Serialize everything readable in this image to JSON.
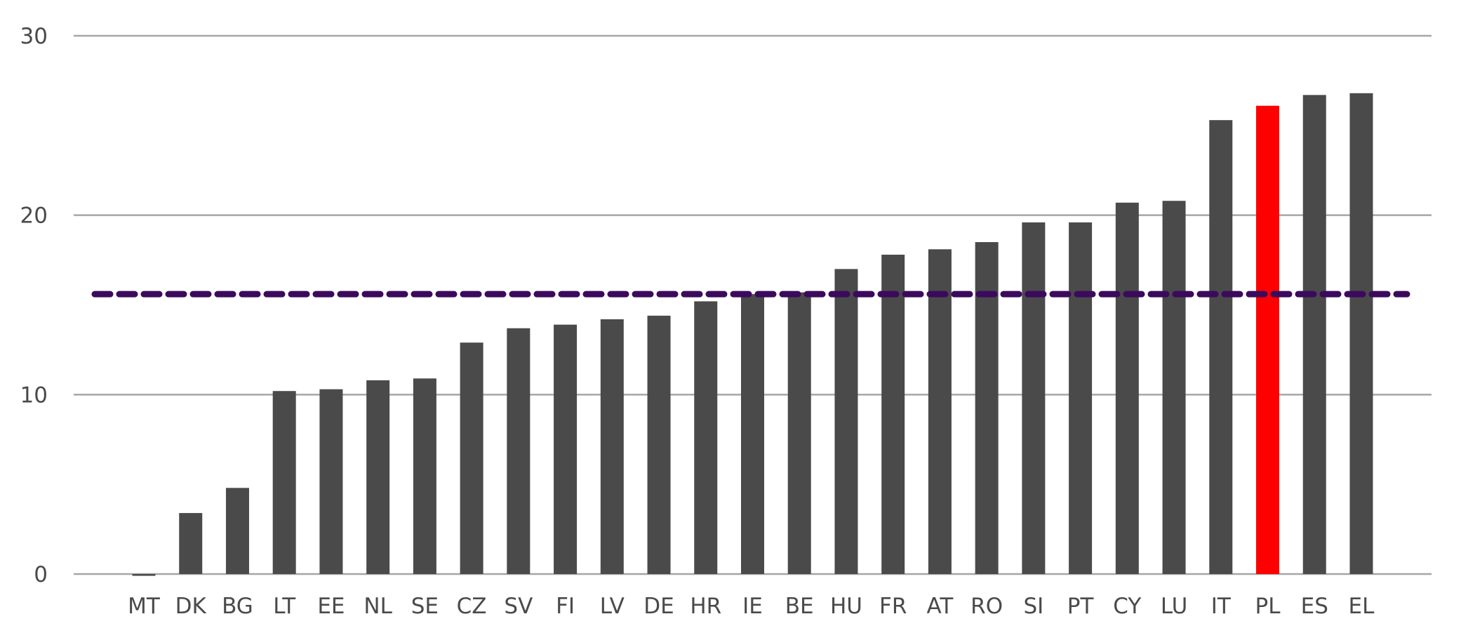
{
  "chart_data": {
    "type": "bar",
    "title": "",
    "xlabel": "",
    "ylabel": "",
    "ylim": [
      0,
      30
    ],
    "yticks": [
      0,
      10,
      20,
      30
    ],
    "grid": true,
    "legend": "none",
    "categories": [
      "MT",
      "DK",
      "BG",
      "LT",
      "EE",
      "NL",
      "SE",
      "CZ",
      "SV",
      "FI",
      "LV",
      "DE",
      "HR",
      "IE",
      "BE",
      "HU",
      "FR",
      "AT",
      "RO",
      "SI",
      "PT",
      "CY",
      "LU",
      "IT",
      "PL",
      "ES",
      "EL"
    ],
    "values": [
      -0.1,
      3.4,
      4.8,
      10.2,
      10.3,
      10.8,
      10.9,
      12.9,
      13.7,
      13.9,
      14.2,
      14.4,
      15.2,
      15.6,
      15.7,
      17.0,
      17.8,
      18.1,
      18.5,
      19.6,
      19.6,
      20.7,
      20.8,
      25.3,
      26.1,
      26.7,
      26.8
    ],
    "highlight_category": "PL",
    "reference_line": {
      "value": 15.6,
      "style": "dashed"
    },
    "colors": {
      "bar": "#4a4a4a",
      "highlight": "#ff0000",
      "reference_line": "#3b0a5c",
      "grid": "#a6a6a6",
      "text": "#4a4a4a"
    }
  }
}
